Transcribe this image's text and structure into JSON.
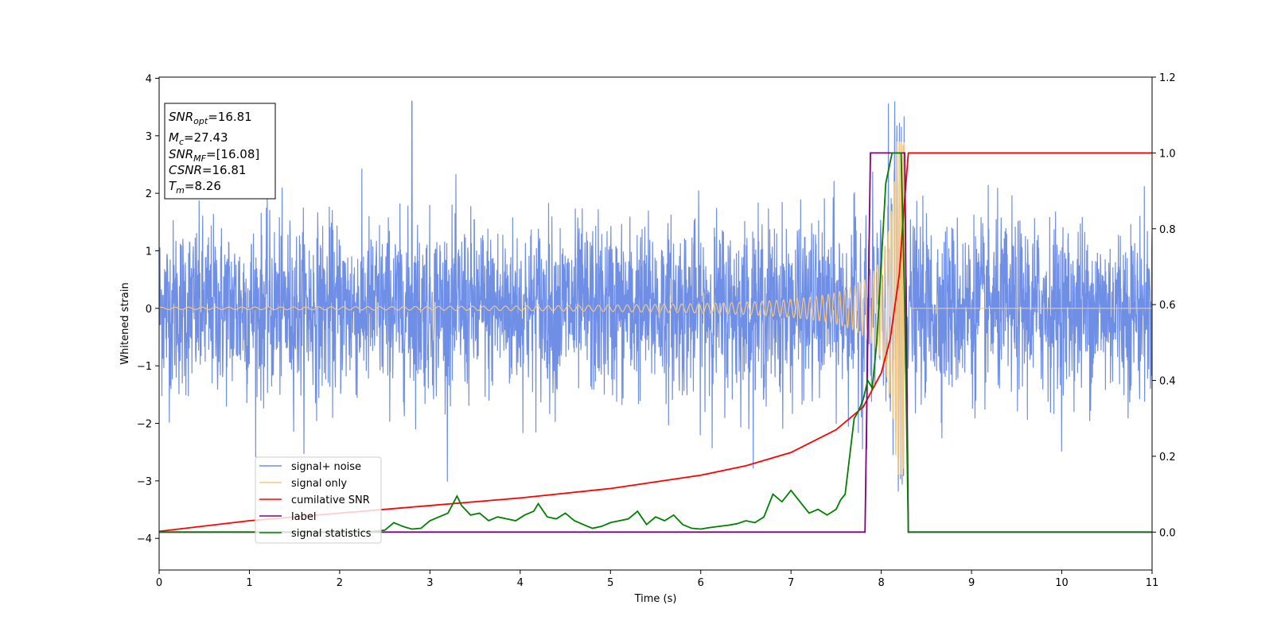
{
  "chart_data": {
    "type": "line",
    "xlabel": "Time (s)",
    "ylabel": "Whitened strain",
    "xlim": [
      0,
      11
    ],
    "ylim_left": [
      -4.55,
      4.02
    ],
    "ylim_right": [
      -0.1,
      1.2
    ],
    "x_ticks": [
      "0",
      "1",
      "2",
      "3",
      "4",
      "5",
      "6",
      "7",
      "8",
      "9",
      "10",
      "11"
    ],
    "y_ticks_left": [
      "4",
      "3",
      "2",
      "1",
      "0",
      "−1",
      "−2",
      "−3",
      "−4"
    ],
    "y_ticks_right": [
      "1.2",
      "1.0",
      "0.8",
      "0.6",
      "0.4",
      "0.2",
      "0.0"
    ],
    "info_box": {
      "line1_var": "SNR",
      "line1_sub": "opt",
      "line1_val": "=16.81",
      "line2_var": "M",
      "line2_sub": "c",
      "line2_val": "=27.43",
      "line3_var": "SNR",
      "line3_sub": "MF",
      "line3_val": "=[16.08]",
      "line4_var": "CSNR",
      "line4_val": "=16.81",
      "line5_var": "T",
      "line5_sub": "m",
      "line5_val": "=8.26"
    },
    "series": [
      {
        "name": "signal+ noise",
        "color": "#6f8ee6",
        "axis": "left",
        "description_values": {
          "noise_sigma": 0.75,
          "typical_max": 2.6,
          "peak_value": 3.63,
          "peak_time": 2.8
        }
      },
      {
        "name": "signal only",
        "color": "#f5c77e",
        "axis": "left",
        "merger_time": 8.26,
        "peak_amplitude": 2.9
      },
      {
        "name": "cumilative SNR",
        "color": "#ff0000",
        "axis": "right",
        "x": [
          0,
          1,
          2,
          3,
          4,
          5,
          6,
          6.5,
          7,
          7.5,
          7.8,
          8.0,
          8.1,
          8.2,
          8.25,
          8.3,
          11
        ],
        "y": [
          0.002,
          0.03,
          0.05,
          0.07,
          0.09,
          0.115,
          0.15,
          0.175,
          0.21,
          0.27,
          0.33,
          0.42,
          0.51,
          0.68,
          0.85,
          1.0,
          1.0
        ]
      },
      {
        "name": "label",
        "color": "#800080",
        "axis": "right",
        "x": [
          0,
          7.82,
          7.88,
          8.26,
          8.3,
          11
        ],
        "y": [
          0,
          0,
          1,
          1,
          0,
          0
        ]
      },
      {
        "name": "signal statistics",
        "color": "#008000",
        "axis": "right",
        "x": [
          0,
          2.3,
          2.5,
          2.6,
          2.7,
          2.8,
          2.9,
          3.0,
          3.1,
          3.2,
          3.3,
          3.35,
          3.45,
          3.55,
          3.65,
          3.75,
          3.85,
          3.95,
          4.05,
          4.15,
          4.2,
          4.3,
          4.4,
          4.5,
          4.6,
          4.7,
          4.8,
          4.9,
          5.0,
          5.1,
          5.2,
          5.3,
          5.4,
          5.5,
          5.6,
          5.7,
          5.8,
          5.9,
          6.0,
          6.1,
          6.2,
          6.3,
          6.4,
          6.5,
          6.6,
          6.7,
          6.8,
          6.9,
          7.0,
          7.1,
          7.2,
          7.3,
          7.4,
          7.5,
          7.55,
          7.6,
          7.7,
          7.75,
          7.8,
          7.85,
          7.9,
          7.95,
          8.05,
          8.12,
          8.18,
          8.22,
          8.26,
          8.3,
          11
        ],
        "y": [
          0,
          0,
          0.005,
          0.025,
          0.015,
          0.008,
          0.01,
          0.03,
          0.04,
          0.05,
          0.095,
          0.07,
          0.045,
          0.05,
          0.03,
          0.04,
          0.035,
          0.03,
          0.045,
          0.055,
          0.075,
          0.04,
          0.035,
          0.05,
          0.03,
          0.02,
          0.01,
          0.015,
          0.025,
          0.03,
          0.035,
          0.055,
          0.02,
          0.04,
          0.03,
          0.045,
          0.02,
          0.01,
          0.008,
          0.012,
          0.015,
          0.018,
          0.022,
          0.03,
          0.025,
          0.04,
          0.1,
          0.08,
          0.11,
          0.08,
          0.05,
          0.06,
          0.045,
          0.06,
          0.085,
          0.1,
          0.3,
          0.32,
          0.35,
          0.4,
          0.38,
          0.5,
          0.92,
          1.0,
          1.0,
          1.0,
          0.6,
          0.0,
          0.0
        ]
      }
    ],
    "legend": {
      "location": "lower-left",
      "entries": [
        "signal+ noise",
        "signal only",
        "cumilative SNR",
        "label",
        "signal statistics"
      ]
    }
  }
}
